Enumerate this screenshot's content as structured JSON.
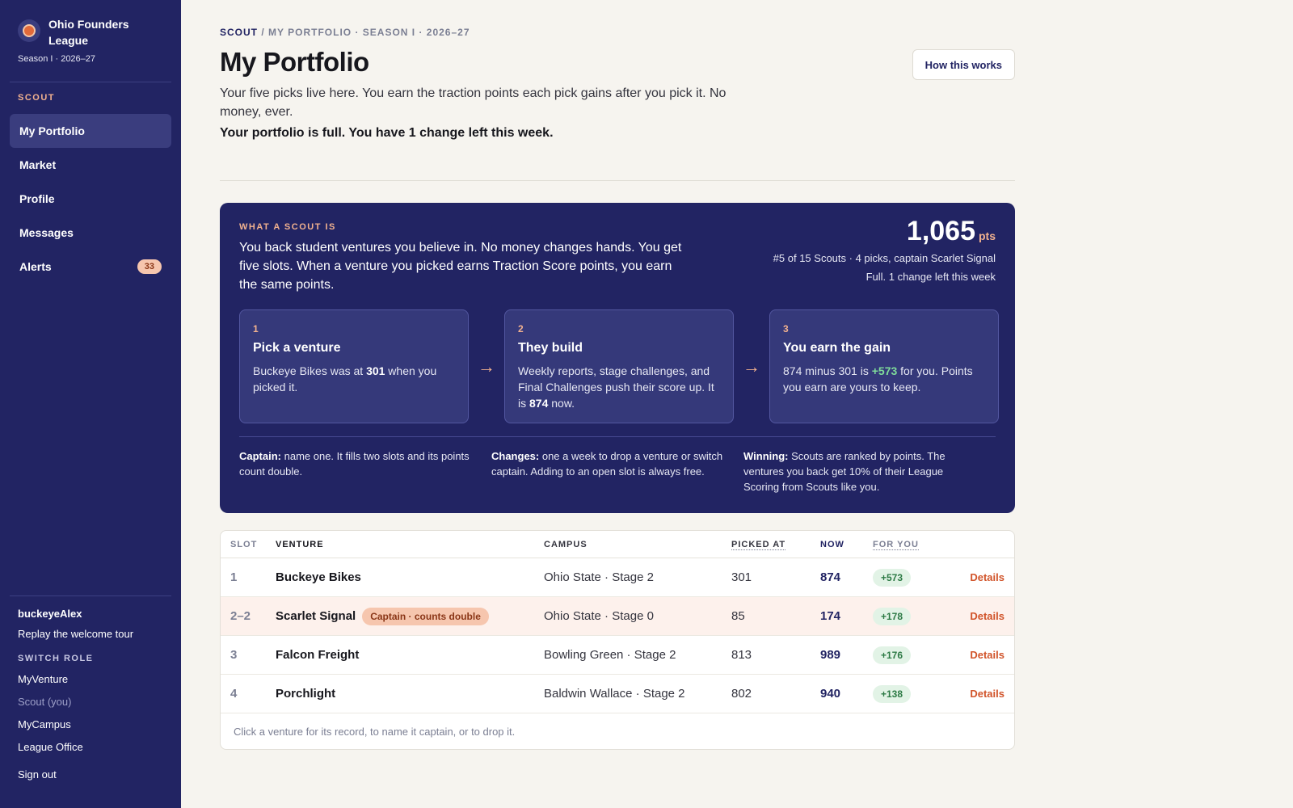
{
  "brand": {
    "name": "Ohio Founders League",
    "season": "Season I · 2026–27"
  },
  "sidebar": {
    "section": "SCOUT",
    "items": [
      {
        "label": "My Portfolio",
        "active": true
      },
      {
        "label": "Market"
      },
      {
        "label": "Profile"
      },
      {
        "label": "Messages"
      },
      {
        "label": "Alerts",
        "badge": "33"
      }
    ],
    "user": "buckeyeAlex",
    "replay": "Replay the welcome tour",
    "switch_label": "SWITCH ROLE",
    "roles": [
      "MyVenture",
      "Scout (you)",
      "MyCampus",
      "League Office"
    ],
    "signout": "Sign out"
  },
  "header": {
    "crumb_root": "SCOUT",
    "crumb_rest": " / MY PORTFOLIO · SEASON I · 2026–27",
    "title": "My Portfolio",
    "how_button": "How this works",
    "intro": "Your five picks live here. You earn the traction points each pick gains after you pick it. No money, ever.",
    "status": "Your portfolio is full. You have 1 change left this week."
  },
  "explainer": {
    "label": "WHAT A SCOUT IS",
    "text": "You back student ventures you believe in. No money changes hands. You get five slots. When a venture you picked earns Traction Score points, you earn the same points.",
    "points": "1,065",
    "points_unit": "pts",
    "rank_line": "#5 of 15 Scouts · 4 picks, captain Scarlet Signal",
    "full_line": "Full. 1 change left this week",
    "steps": [
      {
        "num": "1",
        "title": "Pick a venture",
        "a": "Buckeye Bikes was at ",
        "b": "301",
        "c": " when you picked it."
      },
      {
        "num": "2",
        "title": "They build",
        "a": "Weekly reports, stage challenges, and Final Challenges push their score up. It is ",
        "b": "874",
        "c": " now."
      },
      {
        "num": "3",
        "title": "You earn the gain",
        "a": "874 minus 301 is ",
        "b": "+573",
        "c": " for you. Points you earn are yours to keep."
      }
    ],
    "arrow": "→",
    "rules": [
      {
        "head": "Captain:",
        "body": " name one. It fills two slots and its points count double."
      },
      {
        "head": "Changes:",
        "body": " one a week to drop a venture or switch captain. Adding to an open slot is always free."
      },
      {
        "head": "Winning:",
        "body": " Scouts are ranked by points. The ventures you back get 10% of their League Scoring from Scouts like you."
      }
    ]
  },
  "table": {
    "headers": {
      "slot": "SLOT",
      "venture": "VENTURE",
      "campus": "CAMPUS",
      "picked": "PICKED AT",
      "now": "NOW",
      "for_you": "FOR YOU"
    },
    "rows": [
      {
        "slot": "1",
        "venture": "Buckeye Bikes",
        "tag": "",
        "campus": "Ohio State · Stage 2",
        "picked": "301",
        "now": "874",
        "gain": "+573",
        "details": "Details"
      },
      {
        "slot": "2–2",
        "venture": "Scarlet Signal",
        "tag": "Captain · counts double",
        "campus": "Ohio State · Stage 0",
        "picked": "85",
        "now": "174",
        "gain": "+178",
        "details": "Details"
      },
      {
        "slot": "3",
        "venture": "Falcon Freight",
        "tag": "",
        "campus": "Bowling Green · Stage 2",
        "picked": "813",
        "now": "989",
        "gain": "+176",
        "details": "Details"
      },
      {
        "slot": "4",
        "venture": "Porchlight",
        "tag": "",
        "campus": "Baldwin Wallace · Stage 2",
        "picked": "802",
        "now": "940",
        "gain": "+138",
        "details": "Details"
      }
    ],
    "footer": "Click a venture for its record, to name it captain, or to drop it."
  }
}
